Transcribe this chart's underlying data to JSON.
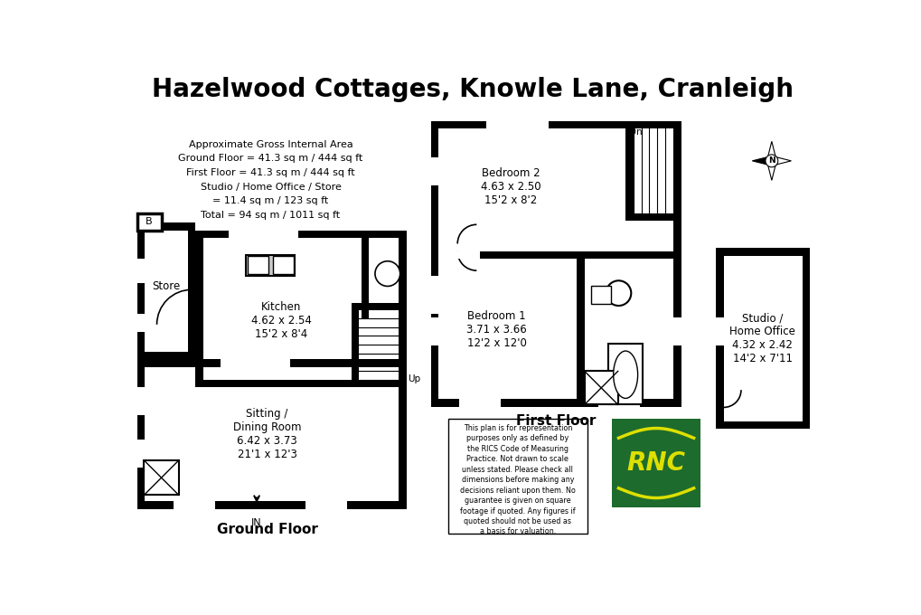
{
  "title": "Hazelwood Cottages, Knowle Lane, Cranleigh",
  "title_fontsize": 20,
  "bg": "#ffffff",
  "wc": "#000000",
  "area_text": "Approximate Gross Internal Area\nGround Floor = 41.3 sq m / 444 sq ft\nFirst Floor = 41.3 sq m / 444 sq ft\nStudio / Home Office / Store\n= 11.4 sq m / 123 sq ft\nTotal = 94 sq m / 1011 sq ft",
  "disclaimer": "This plan is for representation\npurposes only as defined by\nthe RICS Code of Measuring\nPractice. Not drawn to scale\nunless stated. Please check all\ndimensions before making any\ndecisions reliant upon them. No\nguarantee is given on square\nfootage if quoted. Any figures if\nquoted should not be used as\na basis for valuation.",
  "rnc_green": "#1e6b2e",
  "rnc_yellow": "#dde000"
}
